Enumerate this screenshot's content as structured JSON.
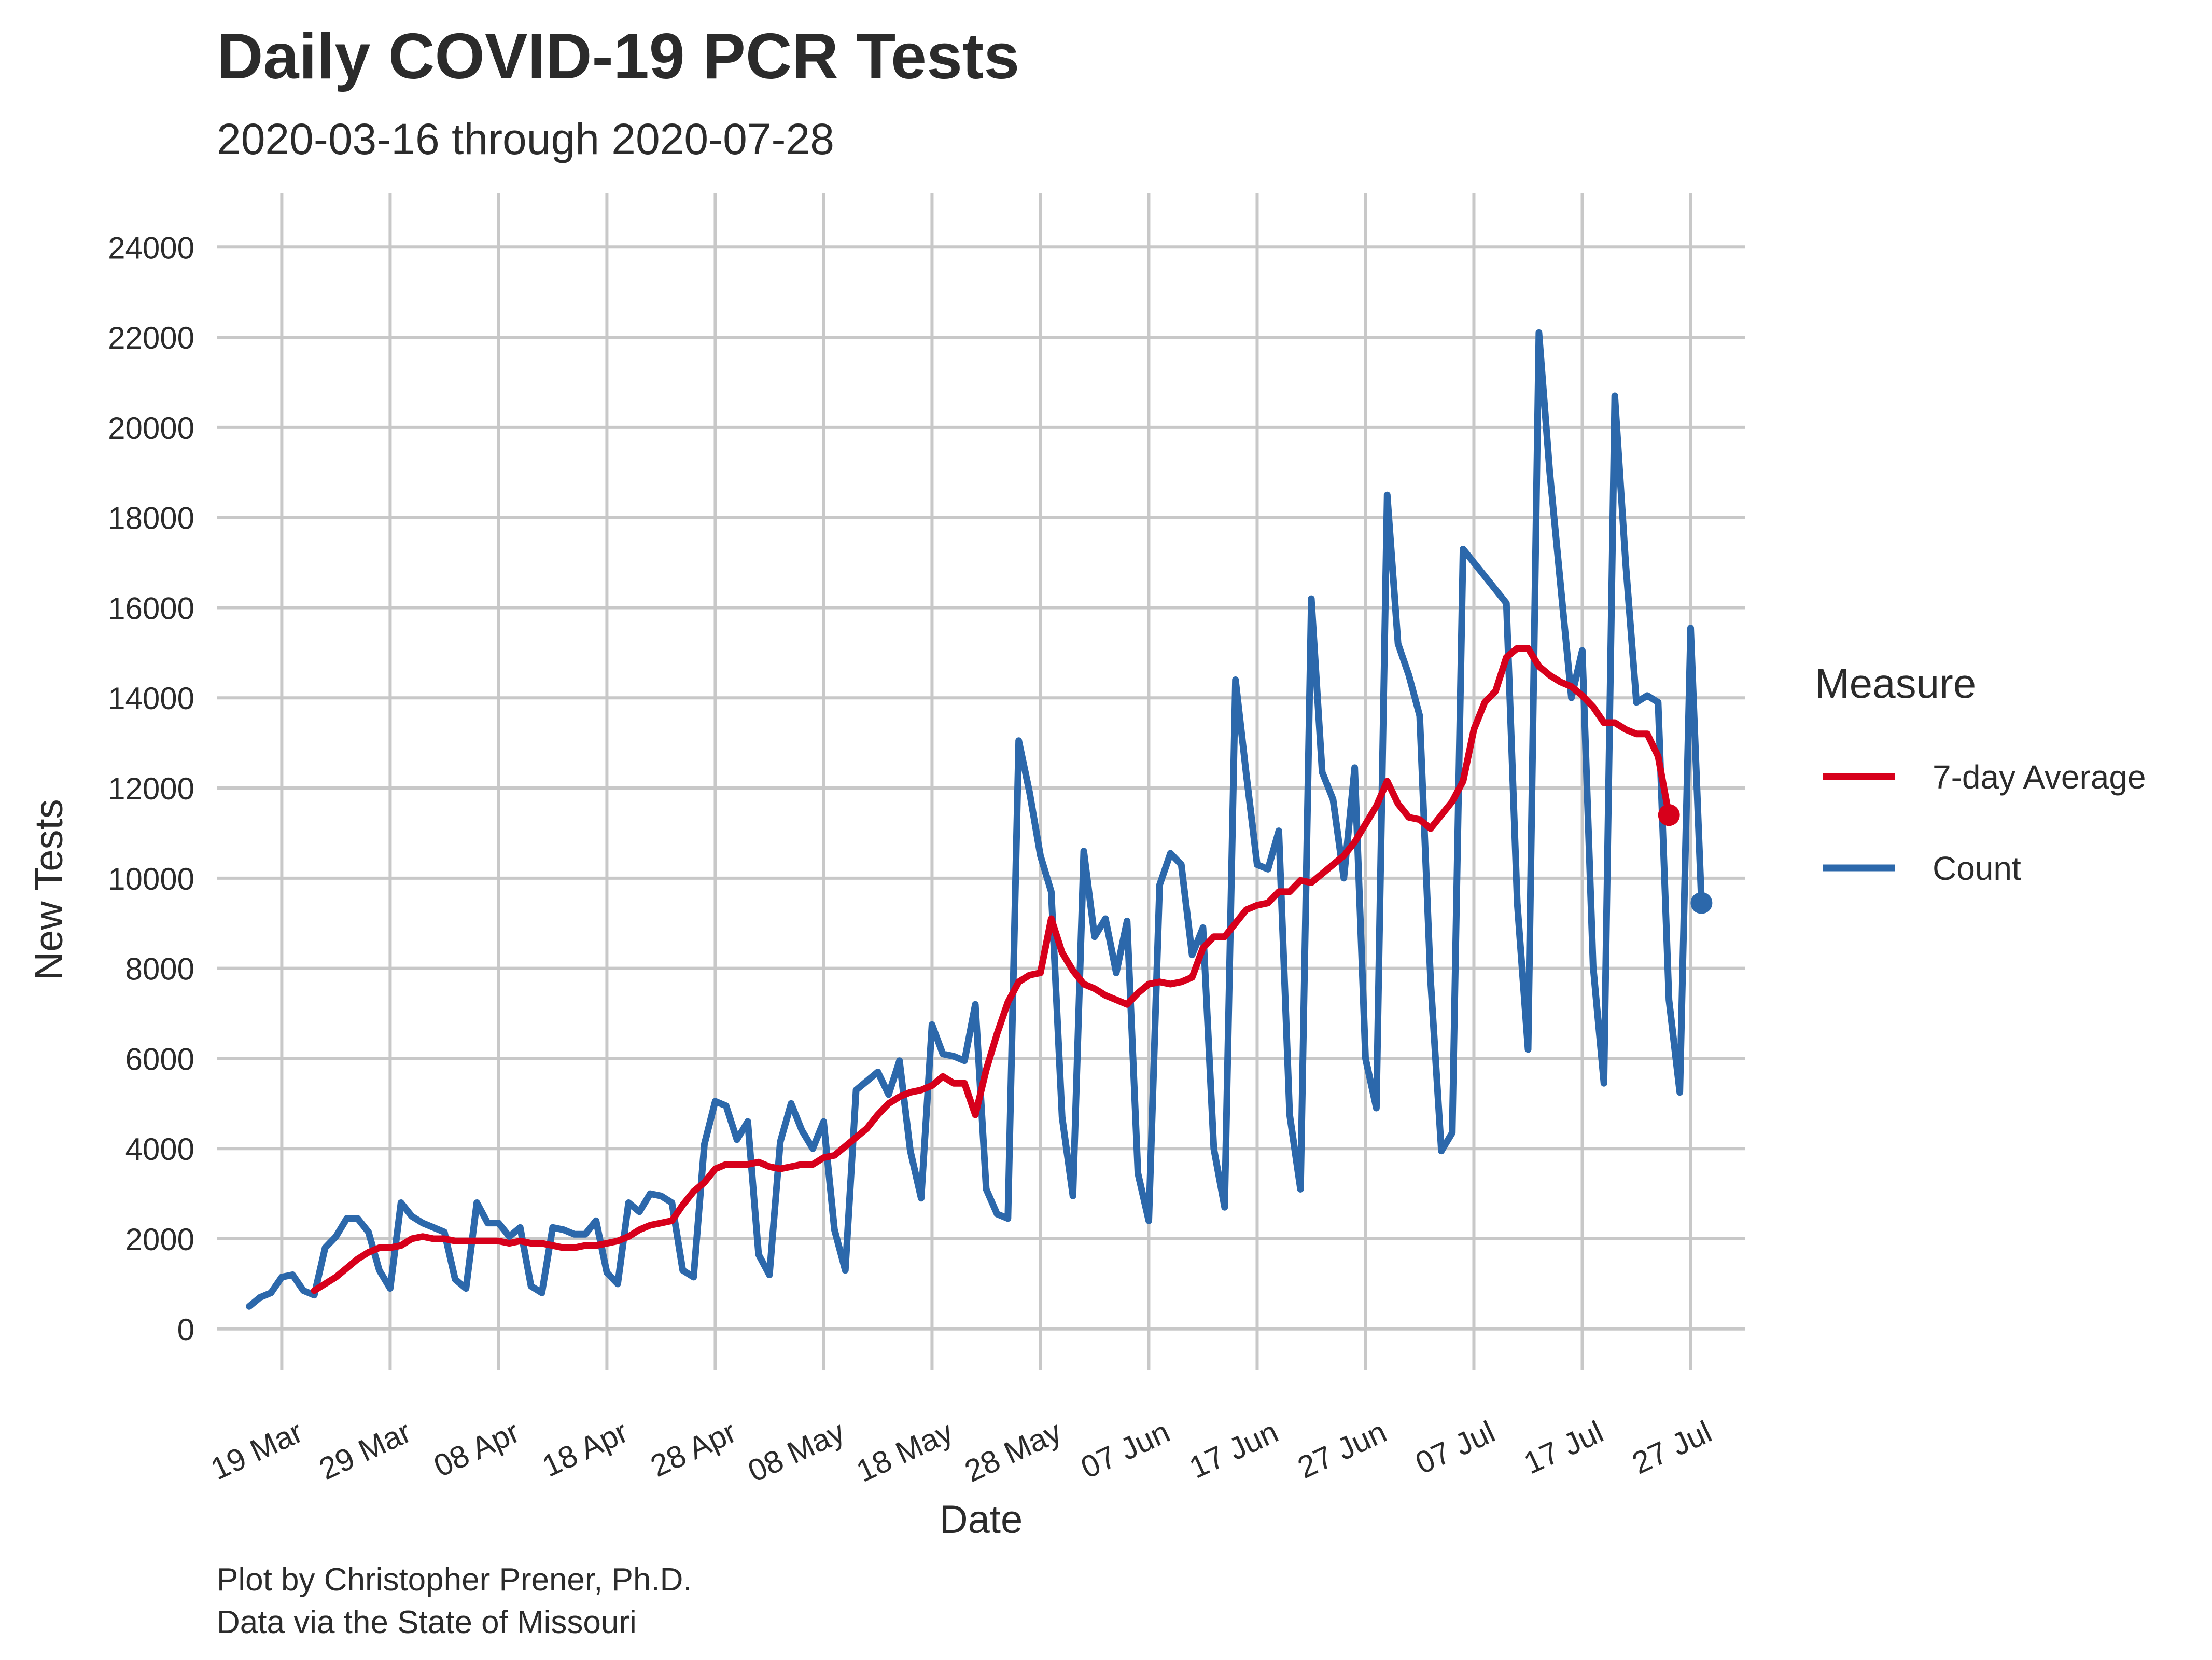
{
  "title": "Daily COVID-19 PCR Tests",
  "subtitle": "2020-03-16 through 2020-07-28",
  "captions": [
    "Plot by Christopher Prener, Ph.D.",
    "Data via the State of Missouri"
  ],
  "colors": {
    "count": "#2c68ab",
    "average": "#d7001b",
    "grid": "#c8c8c8",
    "text": "#2b2b2b"
  },
  "chart_data": {
    "type": "line",
    "xlabel": "Date",
    "ylabel": "New Tests",
    "ylim": [
      -900,
      25200
    ],
    "xlim": [
      "2020-03-13",
      "2020-08-01"
    ],
    "yticks": [
      0,
      2000,
      4000,
      6000,
      8000,
      10000,
      12000,
      14000,
      16000,
      18000,
      20000,
      22000,
      24000
    ],
    "xticks": [
      {
        "date": "2020-03-19",
        "label": "19 Mar"
      },
      {
        "date": "2020-03-29",
        "label": "29 Mar"
      },
      {
        "date": "2020-04-08",
        "label": "08 Apr"
      },
      {
        "date": "2020-04-18",
        "label": "18 Apr"
      },
      {
        "date": "2020-04-28",
        "label": "28 Apr"
      },
      {
        "date": "2020-05-08",
        "label": "08 May"
      },
      {
        "date": "2020-05-18",
        "label": "18 May"
      },
      {
        "date": "2020-05-28",
        "label": "28 May"
      },
      {
        "date": "2020-06-07",
        "label": "07 Jun"
      },
      {
        "date": "2020-06-17",
        "label": "17 Jun"
      },
      {
        "date": "2020-06-27",
        "label": "27 Jun"
      },
      {
        "date": "2020-07-07",
        "label": "07 Jul"
      },
      {
        "date": "2020-07-17",
        "label": "17 Jul"
      },
      {
        "date": "2020-07-27",
        "label": "27 Jul"
      }
    ],
    "grid": true,
    "legend": {
      "title": "Measure",
      "position": "right",
      "entries": [
        "7-day Average",
        "Count"
      ]
    },
    "series": [
      {
        "name": "Count",
        "start_date": "2020-03-16",
        "values": [
          500,
          700,
          800,
          1150,
          1200,
          850,
          750,
          1800,
          2050,
          2450,
          2450,
          2150,
          1300,
          900,
          2800,
          2500,
          2350,
          2250,
          2150,
          1100,
          900,
          2800,
          2350,
          2350,
          2050,
          2250,
          950,
          800,
          2250,
          2200,
          2100,
          2100,
          2400,
          1250,
          1000,
          2800,
          2600,
          3000,
          2950,
          2800,
          1300,
          1150,
          4100,
          5050,
          4950,
          4200,
          4600,
          1650,
          1200,
          4150,
          5000,
          4400,
          4000,
          4600,
          2200,
          1300,
          5300,
          5500,
          5700,
          5200,
          5950,
          3950,
          2900,
          6750,
          6100,
          6050,
          5950,
          7200,
          3100,
          2550,
          2450,
          13050,
          11900,
          10500,
          9700,
          4700,
          2950,
          10600,
          8700,
          9100,
          7900,
          9050,
          3450,
          2400,
          9850,
          10550,
          10300,
          8300,
          8900,
          4000,
          2700,
          14400,
          12300,
          10300,
          10200,
          11050,
          4750,
          3100,
          16200,
          12350,
          11750,
          10000,
          12450,
          6000,
          4900,
          18500,
          15200,
          14500,
          13600,
          7750,
          3950,
          4350,
          17300,
          17000,
          16700,
          16400,
          16100,
          9450,
          6200,
          22100,
          19000,
          16500,
          14000,
          15050,
          8050,
          5450,
          20700,
          17000,
          13900,
          14050,
          13900,
          7300,
          5250,
          15550,
          9450
        ]
      },
      {
        "name": "7-day Average",
        "start_date": "2020-03-22",
        "values": [
          850,
          1000,
          1150,
          1350,
          1550,
          1700,
          1800,
          1800,
          1850,
          2000,
          2050,
          2000,
          2000,
          1950,
          1950,
          1950,
          1950,
          1950,
          1900,
          1950,
          1900,
          1900,
          1850,
          1800,
          1800,
          1850,
          1850,
          1900,
          1950,
          2050,
          2200,
          2300,
          2350,
          2400,
          2750,
          3050,
          3250,
          3550,
          3650,
          3650,
          3650,
          3700,
          3600,
          3550,
          3600,
          3650,
          3650,
          3800,
          3850,
          4050,
          4250,
          4450,
          4750,
          5000,
          5150,
          5250,
          5300,
          5400,
          5600,
          5450,
          5450,
          4750,
          5750,
          6550,
          7250,
          7700,
          7850,
          7900,
          9100,
          8350,
          7950,
          7650,
          7550,
          7400,
          7300,
          7200,
          7450,
          7650,
          7700,
          7650,
          7700,
          7800,
          8450,
          8700,
          8700,
          9000,
          9300,
          9400,
          9450,
          9700,
          9700,
          9950,
          9900,
          10100,
          10300,
          10500,
          10800,
          11200,
          11600,
          12150,
          11650,
          11350,
          11300,
          11100,
          11400,
          11700,
          12150,
          13300,
          13900,
          14150,
          14900,
          15100,
          15100,
          14700,
          14500,
          14350,
          14250,
          14050,
          13800,
          13450,
          13450,
          13300,
          13200,
          13200,
          12700,
          11400
        ]
      }
    ]
  }
}
